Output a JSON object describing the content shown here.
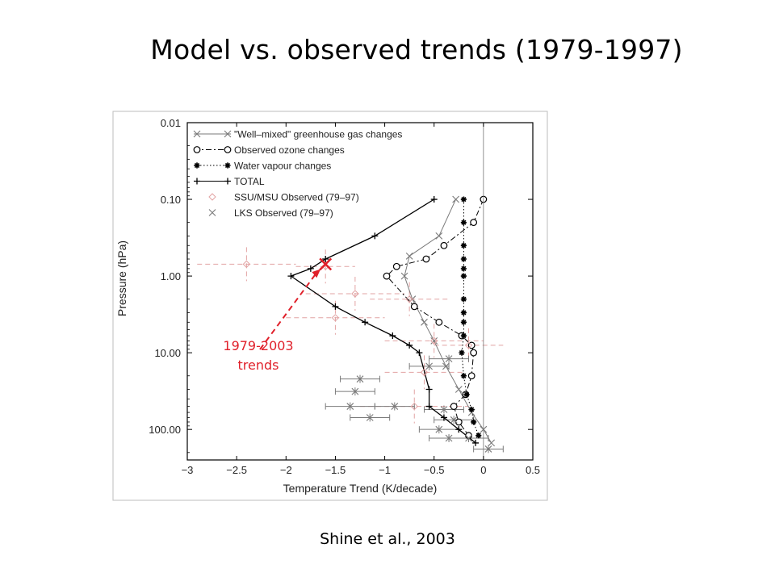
{
  "slide": {
    "title": "Model vs. observed trends (1979-1997)",
    "citation": "Shine et al., 2003"
  },
  "colors": {
    "annotation": "#e0202a",
    "obs_dashed": "#e2a3a3",
    "plot_line": "#000000",
    "plot_grey": "#7a7a7a",
    "frame": "#bbbbbb"
  },
  "chart_data": {
    "type": "line",
    "xlabel": "Temperature Trend (K/decade)",
    "ylabel": "Pressure (hPa)",
    "xlim": [
      -3,
      0.5
    ],
    "ylim": [
      0.01,
      250
    ],
    "y_log": true,
    "x_ticks": [
      -3,
      -2.5,
      -2,
      -1.5,
      -1,
      -0.5,
      0,
      0.5
    ],
    "x_tick_labels": [
      "−3",
      "−2.5",
      "−2",
      "−1.5",
      "−1",
      "−0.5",
      "0",
      "0.5"
    ],
    "y_ticks": [
      0.01,
      0.1,
      1,
      10,
      100
    ],
    "y_tick_labels": [
      "0.01",
      "0.10",
      "1.00",
      "10.00",
      "100.00"
    ],
    "zero_line": 0,
    "legend_placement": "top-left",
    "series": [
      {
        "name": "\"Well–mixed\" greenhouse gas changes",
        "marker": "x",
        "dash": "solid",
        "color": "#7a7a7a",
        "points": [
          [
            -0.28,
            0.1
          ],
          [
            -0.45,
            0.3
          ],
          [
            -0.75,
            0.55
          ],
          [
            -0.8,
            1.0
          ],
          [
            -0.72,
            2.0
          ],
          [
            -0.6,
            4.0
          ],
          [
            -0.5,
            7.0
          ],
          [
            -0.38,
            15
          ],
          [
            -0.25,
            30
          ],
          [
            -0.12,
            60
          ],
          [
            0.0,
            100
          ],
          [
            0.08,
            150
          ]
        ]
      },
      {
        "name": "Observed ozone changes",
        "marker": "circle",
        "dash": "dashdot",
        "color": "#000000",
        "points": [
          [
            0.0,
            0.1
          ],
          [
            -0.1,
            0.2
          ],
          [
            -0.4,
            0.4
          ],
          [
            -0.58,
            0.6
          ],
          [
            -0.88,
            0.75
          ],
          [
            -0.98,
            1.0
          ],
          [
            -0.7,
            2.5
          ],
          [
            -0.45,
            4.0
          ],
          [
            -0.22,
            6.0
          ],
          [
            -0.12,
            8.0
          ],
          [
            -0.1,
            10
          ],
          [
            -0.12,
            20
          ],
          [
            -0.18,
            35
          ],
          [
            -0.3,
            50
          ],
          [
            -0.25,
            80
          ],
          [
            -0.15,
            120
          ]
        ]
      },
      {
        "name": "Water vapour changes",
        "marker": "asterisk",
        "dash": "dotted",
        "color": "#000000",
        "points": [
          [
            -0.2,
            0.1
          ],
          [
            -0.2,
            0.2
          ],
          [
            -0.2,
            0.4
          ],
          [
            -0.2,
            0.6
          ],
          [
            -0.2,
            0.8
          ],
          [
            -0.2,
            1.0
          ],
          [
            -0.2,
            2.0
          ],
          [
            -0.2,
            3.0
          ],
          [
            -0.2,
            4.0
          ],
          [
            -0.2,
            6.0
          ],
          [
            -0.22,
            10
          ],
          [
            -0.2,
            20
          ],
          [
            -0.17,
            35
          ],
          [
            -0.12,
            55
          ],
          [
            -0.1,
            80
          ],
          [
            -0.05,
            120
          ]
        ]
      },
      {
        "name": "TOTAL",
        "marker": "plus",
        "dash": "solid",
        "color": "#000000",
        "points": [
          [
            -0.5,
            0.1
          ],
          [
            -1.1,
            0.3
          ],
          [
            -1.6,
            0.6
          ],
          [
            -1.75,
            0.8
          ],
          [
            -1.95,
            1.0
          ],
          [
            -1.5,
            2.5
          ],
          [
            -1.2,
            4.0
          ],
          [
            -0.92,
            6.0
          ],
          [
            -0.75,
            8.0
          ],
          [
            -0.65,
            10
          ],
          [
            -0.55,
            30
          ],
          [
            -0.55,
            50
          ],
          [
            -0.4,
            70
          ],
          [
            -0.25,
            100
          ],
          [
            -0.08,
            150
          ]
        ]
      },
      {
        "name": "SSU/MSU Observed (79–97)",
        "marker": "diamond",
        "dash": "none",
        "color": "#e2a3a3",
        "points": [
          [
            -2.4,
            0.7
          ],
          [
            -1.6,
            0.75
          ],
          [
            -1.3,
            1.7
          ],
          [
            -0.75,
            2.0
          ],
          [
            -1.5,
            3.5
          ],
          [
            -0.5,
            7.0
          ],
          [
            -0.15,
            8.0
          ],
          [
            -0.6,
            18
          ],
          [
            -0.7,
            50
          ]
        ],
        "xerr": [
          0.5,
          0.3,
          0.5,
          0.4,
          0.5,
          0.5,
          0.35,
          0.4,
          0.55
        ]
      },
      {
        "name": "LKS Observed (79–97)",
        "marker": "x",
        "dash": "none",
        "color": "#7a7a7a",
        "points": [
          [
            -0.35,
            12
          ],
          [
            -0.55,
            15
          ],
          [
            -1.25,
            22
          ],
          [
            -1.3,
            32
          ],
          [
            -1.35,
            50
          ],
          [
            -0.9,
            50
          ],
          [
            -1.15,
            70
          ],
          [
            -0.4,
            55
          ],
          [
            -0.3,
            75
          ],
          [
            -0.45,
            100
          ],
          [
            -0.35,
            130
          ],
          [
            -0.15,
            130
          ],
          [
            0.05,
            180
          ]
        ],
        "xerr": [
          0.2,
          0.2,
          0.2,
          0.2,
          0.25,
          0.2,
          0.2,
          0.2,
          0.2,
          0.2,
          0.2,
          0.2,
          0.15
        ]
      }
    ],
    "annotation": {
      "text_line1": "1979-2003",
      "text_line2": "trends",
      "x": -1.6,
      "y": 0.7
    }
  }
}
